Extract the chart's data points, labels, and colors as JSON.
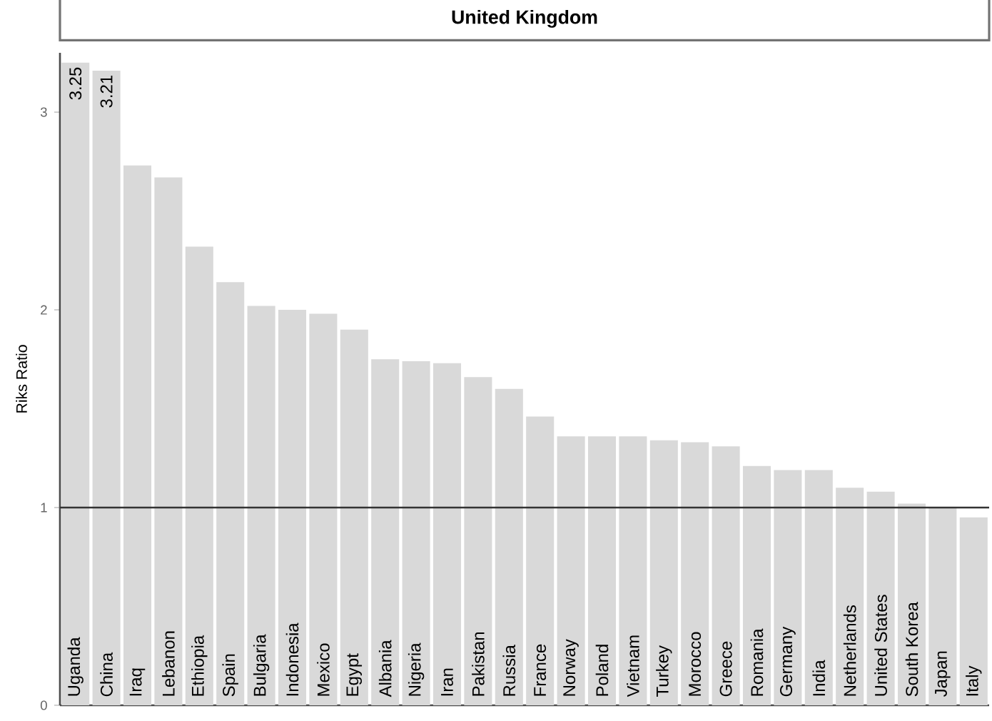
{
  "chart_data": {
    "type": "bar",
    "title": "United Kingdom",
    "ylabel": "Riks Ratio",
    "categories": [
      "Uganda",
      "China",
      "Iraq",
      "Lebanon",
      "Ethiopia",
      "Spain",
      "Bulgaria",
      "Indonesia",
      "Mexico",
      "Egypt",
      "Albania",
      "Nigeria",
      "Iran",
      "Pakistan",
      "Russia",
      "France",
      "Norway",
      "Poland",
      "Vietnam",
      "Turkey",
      "Morocco",
      "Greece",
      "Romania",
      "Germany",
      "India",
      "Netherlands",
      "United States",
      "South Korea",
      "Japan",
      "Italy"
    ],
    "values": [
      3.25,
      3.21,
      2.73,
      2.67,
      2.32,
      2.14,
      2.02,
      2.0,
      1.98,
      1.9,
      1.75,
      1.74,
      1.73,
      1.66,
      1.6,
      1.46,
      1.36,
      1.36,
      1.36,
      1.34,
      1.33,
      1.31,
      1.21,
      1.19,
      1.19,
      1.1,
      1.08,
      1.02,
      1.0,
      0.95
    ],
    "value_labels": [
      "3.25",
      "3.21",
      null,
      null,
      null,
      null,
      null,
      null,
      null,
      null,
      null,
      null,
      null,
      null,
      null,
      null,
      null,
      null,
      null,
      null,
      null,
      null,
      null,
      null,
      null,
      null,
      null,
      null,
      null,
      null
    ],
    "color": "#d9d9d9",
    "ylim": [
      0,
      3.3
    ],
    "yticks": [
      0,
      1,
      2,
      3
    ],
    "ref_lines": [
      {
        "axis": "y",
        "value": 1,
        "color": "#333333"
      }
    ]
  }
}
